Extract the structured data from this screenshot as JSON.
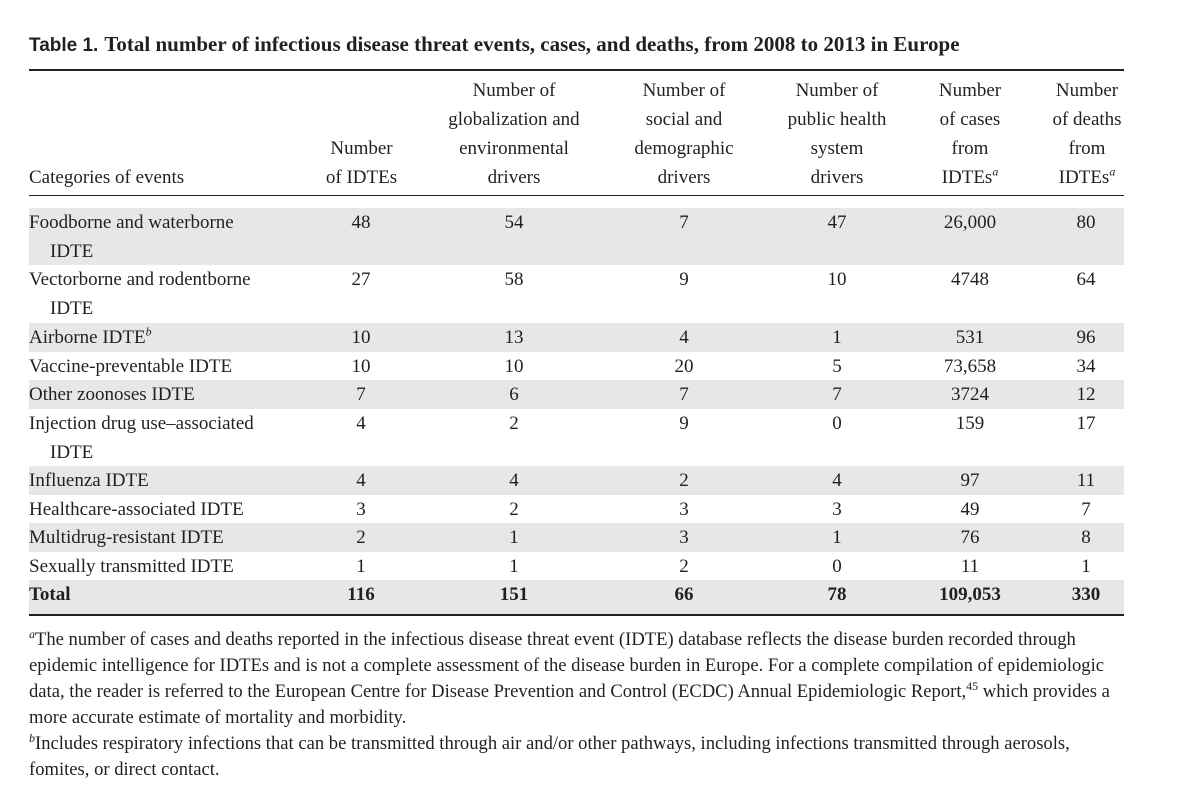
{
  "caption": {
    "label": "Table 1.",
    "title": "Total number of infectious disease threat events, cases, and deaths, from 2008 to 2013 in Europe"
  },
  "headers": {
    "category": "Categories of events",
    "idtes": [
      "Number",
      "of IDTEs"
    ],
    "globalization": [
      "Number of",
      "globalization and",
      "environmental",
      "drivers"
    ],
    "social": [
      "Number of",
      "social and",
      "demographic",
      "drivers"
    ],
    "public_health": [
      "Number of",
      "public health",
      "system",
      "drivers"
    ],
    "cases": [
      "Number",
      "of cases",
      "from",
      "IDTEs"
    ],
    "deaths": [
      "Number",
      "of deaths",
      "from",
      "IDTEs"
    ],
    "cases_mark": "a",
    "deaths_mark": "a"
  },
  "rows": [
    {
      "category": [
        "Foodborne and waterborne",
        "IDTE"
      ],
      "idtes": "48",
      "globalization": "54",
      "social": "7",
      "public_health": "47",
      "cases": "26,000",
      "deaths": "80"
    },
    {
      "category": [
        "Vectorborne and rodentborne",
        "IDTE"
      ],
      "idtes": "27",
      "globalization": "58",
      "social": "9",
      "public_health": "10",
      "cases": "4748",
      "deaths": "64"
    },
    {
      "category": [
        "Airborne IDTE"
      ],
      "mark": "b",
      "idtes": "10",
      "globalization": "13",
      "social": "4",
      "public_health": "1",
      "cases": "531",
      "deaths": "96"
    },
    {
      "category": [
        "Vaccine-preventable IDTE"
      ],
      "idtes": "10",
      "globalization": "10",
      "social": "20",
      "public_health": "5",
      "cases": "73,658",
      "deaths": "34"
    },
    {
      "category": [
        "Other zoonoses IDTE"
      ],
      "idtes": "7",
      "globalization": "6",
      "social": "7",
      "public_health": "7",
      "cases": "3724",
      "deaths": "12"
    },
    {
      "category": [
        "Injection drug use–associated",
        "IDTE"
      ],
      "idtes": "4",
      "globalization": "2",
      "social": "9",
      "public_health": "0",
      "cases": "159",
      "deaths": "17"
    },
    {
      "category": [
        "Influenza IDTE"
      ],
      "idtes": "4",
      "globalization": "4",
      "social": "2",
      "public_health": "4",
      "cases": "97",
      "deaths": "11"
    },
    {
      "category": [
        "Healthcare-associated IDTE"
      ],
      "idtes": "3",
      "globalization": "2",
      "social": "3",
      "public_health": "3",
      "cases": "49",
      "deaths": "7"
    },
    {
      "category": [
        "Multidrug-resistant IDTE"
      ],
      "idtes": "2",
      "globalization": "1",
      "social": "3",
      "public_health": "1",
      "cases": "76",
      "deaths": "8"
    },
    {
      "category": [
        "Sexually transmitted IDTE"
      ],
      "idtes": "1",
      "globalization": "1",
      "social": "2",
      "public_health": "0",
      "cases": "11",
      "deaths": "1"
    }
  ],
  "total": {
    "category": "Total",
    "idtes": "116",
    "globalization": "151",
    "social": "66",
    "public_health": "78",
    "cases": "109,053",
    "deaths": "330"
  },
  "footnotes": {
    "a_mark": "a",
    "a_text_1": "The number of cases and deaths reported in the infectious disease threat event (IDTE) database reflects the disease burden recorded through epidemic intelligence for IDTEs and is not a complete assessment of the disease burden in Europe. For a complete compilation of epidemiologic data, the reader is referred to the European Centre for Disease Prevention and Control (ECDC) Annual Epidemiologic Report,",
    "a_ref": "45",
    "a_text_2": " which provides a more accurate estimate of mortality and morbidity.",
    "b_mark": "b",
    "b_text": "Includes respiratory infections that can be transmitted through air and/or other pathways, including infections transmitted through aerosols, fomites, or direct contact."
  }
}
